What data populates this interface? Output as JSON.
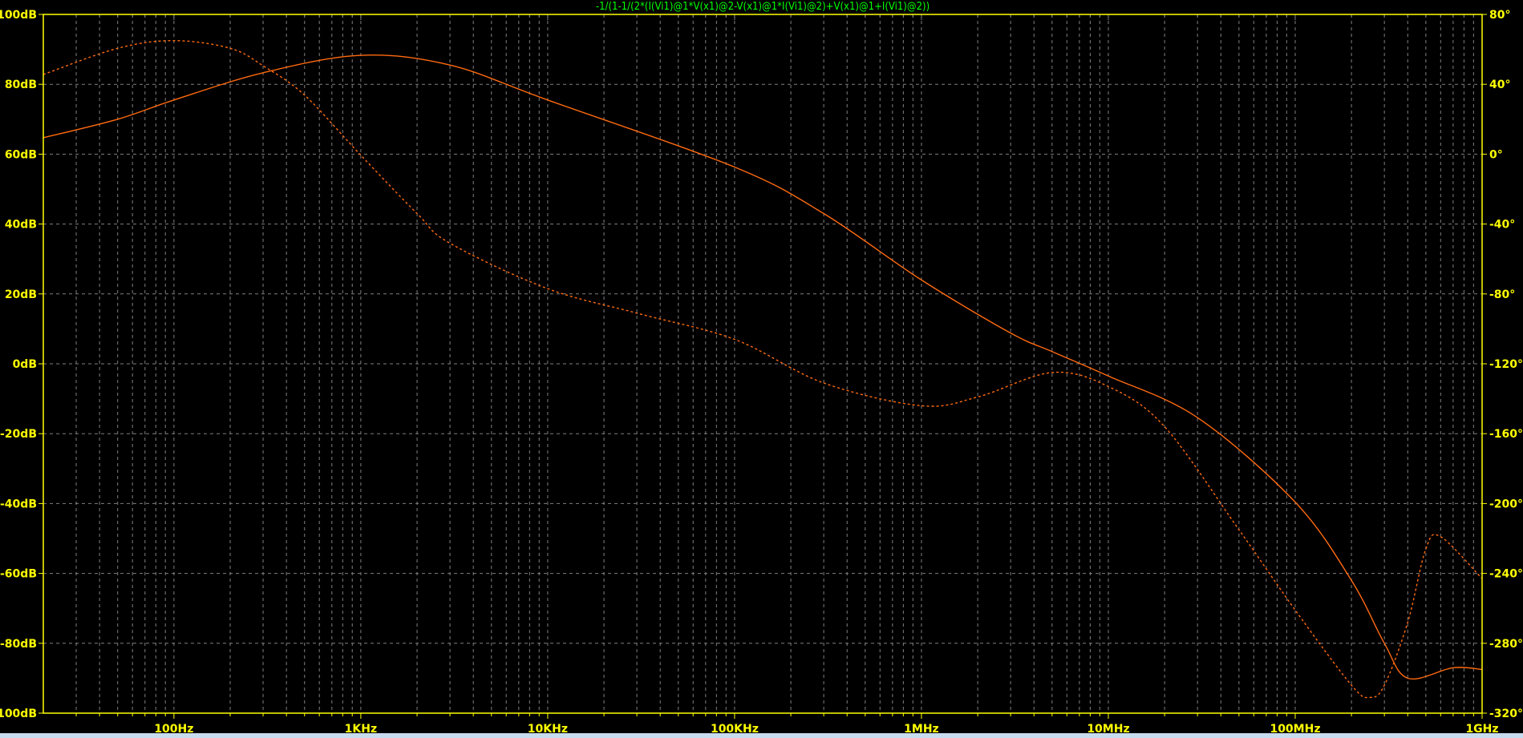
{
  "chart_data": {
    "type": "line",
    "title": "-1/(1-1/(2*(I(Vi1)@1*V(x1)@2-V(x1)@1*I(Vi1)@2)+V(x1)@1+I(Vi1)@2))",
    "x_scale": "log",
    "xlim": [
      20,
      1000000000
    ],
    "x_tick_labels": [
      {
        "value": 100,
        "label": "100Hz"
      },
      {
        "value": 1000,
        "label": "1KHz"
      },
      {
        "value": 10000,
        "label": "10KHz"
      },
      {
        "value": 100000,
        "label": "100KHz"
      },
      {
        "value": 1000000,
        "label": "1MHz"
      },
      {
        "value": 10000000,
        "label": "10MHz"
      },
      {
        "value": 100000000,
        "label": "100MHz"
      },
      {
        "value": 1000000000,
        "label": "1GHz"
      }
    ],
    "y_left": {
      "unit": "dB",
      "lim": [
        -100,
        100
      ],
      "ticks": [
        -100,
        -80,
        -60,
        -40,
        -20,
        0,
        20,
        40,
        60,
        80,
        100
      ],
      "tick_labels": [
        "-100dB",
        "-80dB",
        "-60dB",
        "-40dB",
        "-20dB",
        "0dB",
        "20dB",
        "40dB",
        "60dB",
        "80dB",
        "100dB"
      ]
    },
    "y_right": {
      "unit": "°",
      "lim": [
        -320,
        80
      ],
      "ticks": [
        -320,
        -280,
        -240,
        -200,
        -160,
        -120,
        -80,
        -40,
        0,
        40,
        80
      ],
      "tick_labels": [
        "-320°",
        "-280°",
        "-240°",
        "-200°",
        "-160°",
        "-120°",
        "-80°",
        "-40°",
        "0°",
        "40°",
        "80°"
      ]
    },
    "grid": true,
    "colors": {
      "background": "#000000",
      "axis": "#ffff00",
      "grid": "#808080",
      "trace": "#ff6a10",
      "title": "#00ff00"
    },
    "series": [
      {
        "style": "solid",
        "axis": "left",
        "unit": "dB",
        "x": [
          20,
          50,
          100,
          300,
          1000,
          3000,
          10000,
          100000,
          300000,
          1000000,
          3000000,
          5000000,
          10000000,
          30000000,
          100000000,
          200000000,
          300000000,
          400000000,
          700000000,
          1000000000
        ],
        "y": [
          64.7,
          70,
          75.5,
          83.3,
          88.3,
          85.5,
          75.5,
          56.3,
          43,
          24,
          8.8,
          3.5,
          -3.5,
          -15.4,
          -39.6,
          -62,
          -80,
          -90,
          -87,
          -87.5
        ]
      },
      {
        "style": "dashed",
        "axis": "right",
        "unit": "°",
        "x": [
          20,
          50,
          100,
          200,
          300,
          500,
          1000,
          2000,
          3000,
          10000,
          30000,
          100000,
          300000,
          1000000,
          2000000,
          5000000,
          10000000,
          20000000,
          50000000,
          100000000,
          200000000,
          250000000,
          300000000,
          400000000,
          500000000,
          600000000,
          1000000000
        ],
        "y": [
          45.6,
          60.6,
          65,
          60.6,
          50.6,
          33.8,
          -0.6,
          -34,
          -51,
          -77,
          -91,
          -106,
          -131,
          -144,
          -139,
          -125,
          -133,
          -156,
          -215,
          -261,
          -304,
          -311,
          -304,
          -268,
          -226,
          -219,
          -243
        ]
      }
    ]
  }
}
